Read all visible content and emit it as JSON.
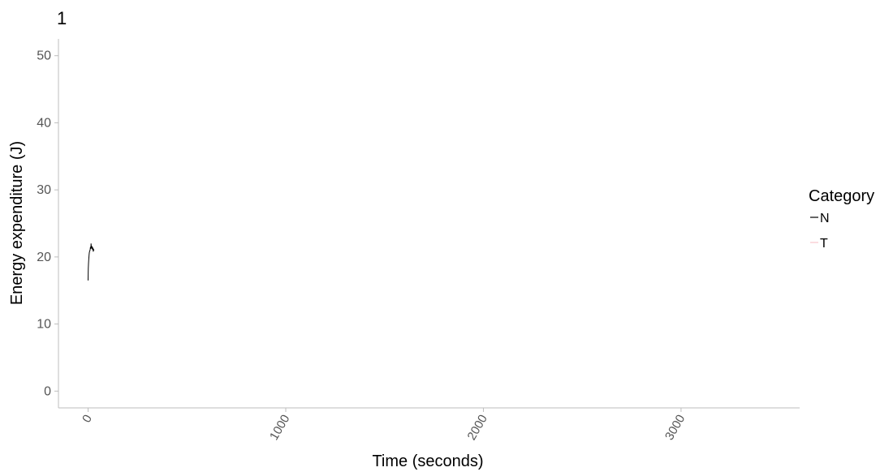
{
  "chart_data": {
    "type": "line",
    "title": "1",
    "xlabel": "Time (seconds)",
    "ylabel": "Energy expenditure (J)",
    "xlim": [
      -150,
      3600
    ],
    "ylim": [
      -2.5,
      52.5
    ],
    "x_ticks": [
      0,
      1000,
      2000,
      3000
    ],
    "x_tick_labels": [
      "0",
      "1000",
      "2000",
      "3000"
    ],
    "x_tick_rotation_deg": -60,
    "y_ticks": [
      0,
      10,
      20,
      30,
      40,
      50
    ],
    "y_tick_labels": [
      "0",
      "10",
      "20",
      "30",
      "40",
      "50"
    ],
    "grid": false,
    "legend": {
      "title": "Category",
      "position": "right",
      "entries": [
        {
          "label": "N",
          "color": "#000000"
        },
        {
          "label": "T",
          "color": "#f8c6cc"
        }
      ]
    },
    "series": [
      {
        "name": "N",
        "color": "#000000",
        "points": [
          [
            0,
            16.5
          ],
          [
            0.5,
            17.5
          ],
          [
            1,
            18.3
          ],
          [
            2,
            19.0
          ],
          [
            3,
            19.5
          ],
          [
            4,
            19.9
          ],
          [
            5,
            20.3
          ],
          [
            6,
            20.6
          ],
          [
            8,
            20.9
          ],
          [
            10,
            21.0
          ],
          [
            12,
            21.5
          ],
          [
            14,
            21.2
          ],
          [
            15,
            22.0
          ],
          [
            16,
            21.6
          ],
          [
            18,
            21.3
          ],
          [
            20,
            21.6
          ],
          [
            22,
            21.1
          ],
          [
            24,
            21.4
          ],
          [
            26,
            20.8
          ],
          [
            28,
            21.1
          ],
          [
            30,
            21.0
          ]
        ]
      },
      {
        "name": "T",
        "color": "#f8c6cc",
        "points": []
      }
    ]
  }
}
